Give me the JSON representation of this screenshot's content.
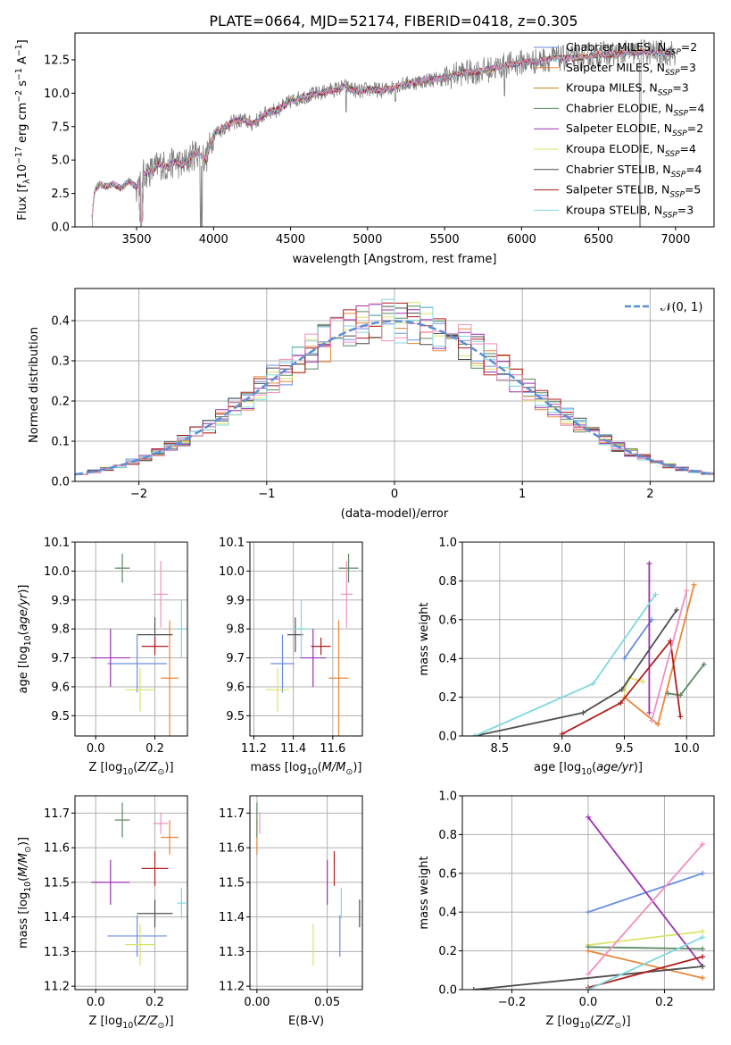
{
  "colors": {
    "chabrier_miles": "#6a8ee0",
    "salpeter_miles": "#e8873a",
    "kroupa_miles": "#b8860b",
    "chabrier_elodie": "#5a8a63",
    "salpeter_elodie": "#9b30b0",
    "kroupa_elodie": "#d9e36a",
    "chabrier_stelib": "#4f4f4f",
    "salpeter_stelib": "#b01e1e",
    "kroupa_stelib": "#80d8e0",
    "pink": "#f090c0",
    "normal_curve": "#5b8fd6",
    "data_spectrum": "#808080",
    "grid": "#b0b0b0"
  },
  "chart_data": [
    {
      "type": "line",
      "title": "PLATE=0664, MJD=52174, FIBERID=0418, z=0.305",
      "xlabel": "wavelength [Angstrom, rest frame]",
      "ylabel": "Flux [fλ10⁻¹⁷ erg cm⁻² s⁻¹ A⁻¹]",
      "xlim": [
        3100,
        7250
      ],
      "ylim": [
        0,
        14.5
      ],
      "xticks": [
        3500,
        4000,
        4500,
        5000,
        5500,
        6000,
        6500,
        7000
      ],
      "yticks": [
        0.0,
        2.5,
        5.0,
        7.5,
        10.0,
        12.5
      ],
      "legend_position": "right",
      "legend": [
        {
          "label": "Chabrier MILES, N",
          "sub": "SSP",
          "suffix": "=2",
          "color": "#6a8ee0"
        },
        {
          "label": "Salpeter MILES, N",
          "sub": "SSP",
          "suffix": "=3",
          "color": "#e8873a"
        },
        {
          "label": "Kroupa MILES, N",
          "sub": "SSP",
          "suffix": "=3",
          "color": "#b8860b"
        },
        {
          "label": "Chabrier ELODIE, N",
          "sub": "SSP",
          "suffix": "=4",
          "color": "#5a8a63"
        },
        {
          "label": "Salpeter ELODIE, N",
          "sub": "SSP",
          "suffix": "=2",
          "color": "#9b30b0"
        },
        {
          "label": "Kroupa ELODIE, N",
          "sub": "SSP",
          "suffix": "=4",
          "color": "#d9e36a"
        },
        {
          "label": "Chabrier STELIB, N",
          "sub": "SSP",
          "suffix": "=4",
          "color": "#4f4f4f"
        },
        {
          "label": "Salpeter STELIB, N",
          "sub": "SSP",
          "suffix": "=5",
          "color": "#b01e1e"
        },
        {
          "label": "Kroupa STELIB, N",
          "sub": "SSP",
          "suffix": "=3",
          "color": "#80d8e0"
        }
      ],
      "continuum": {
        "x": [
          3200,
          3230,
          3260,
          3300,
          3350,
          3400,
          3450,
          3500,
          3550,
          3600,
          3650,
          3700,
          3750,
          3800,
          3850,
          3900,
          3950,
          4000,
          4050,
          4100,
          4150,
          4200,
          4250,
          4300,
          4350,
          4400,
          4450,
          4500,
          4550,
          4600,
          4650,
          4700,
          4750,
          4800,
          4850,
          4900,
          4950,
          5000,
          5100,
          5200,
          5300,
          5400,
          5500,
          5600,
          5700,
          5800,
          5900,
          6000,
          6100,
          6200,
          6300,
          6400,
          6500,
          6600,
          6700,
          6800,
          6900,
          7000
        ],
        "y": [
          0.0,
          2.8,
          3.2,
          3.0,
          3.2,
          2.9,
          3.4,
          3.0,
          4.0,
          4.2,
          4.7,
          4.5,
          4.9,
          4.6,
          5.2,
          5.6,
          5.0,
          7.0,
          7.3,
          7.7,
          7.9,
          8.0,
          7.7,
          8.1,
          8.6,
          8.7,
          9.0,
          9.4,
          9.6,
          9.8,
          9.9,
          10.0,
          10.2,
          10.3,
          10.5,
          10.3,
          10.1,
          10.3,
          10.2,
          10.6,
          10.8,
          11.0,
          11.1,
          11.5,
          11.6,
          11.8,
          12.1,
          12.3,
          12.4,
          12.6,
          12.6,
          12.7,
          12.9,
          12.9,
          13.0,
          13.1,
          13.0,
          13.0
        ]
      },
      "dips": [
        {
          "x": 3530,
          "y": 0.0
        },
        {
          "x": 3915,
          "y": 0.0
        },
        {
          "x": 3925,
          "y": 0.0
        },
        {
          "x": 4860,
          "y": 8.6
        },
        {
          "x": 5180,
          "y": 9.4
        },
        {
          "x": 5890,
          "y": 9.8
        },
        {
          "x": 6770,
          "y": 0.0
        }
      ]
    },
    {
      "type": "step",
      "xlabel": "(data-model)/error",
      "ylabel": "Normed distribution",
      "xlim": [
        -2.5,
        2.5
      ],
      "ylim": [
        0,
        0.48
      ],
      "xticks": [
        -2,
        -1,
        0,
        1,
        2
      ],
      "yticks": [
        0.0,
        0.1,
        0.2,
        0.3,
        0.4
      ],
      "legend_position": "top-right",
      "legend_label": "𝒩(0, 1)",
      "bin_width": 0.1,
      "bin_start": -2.5
    },
    {
      "type": "errorbar",
      "xlabel": "Z [log₁₀(Z/Z⊙)]",
      "ylabel": "age  [log₁₀(age/yr)]",
      "xlim": [
        -0.07,
        0.31
      ],
      "ylim": [
        9.43,
        10.1
      ],
      "xticks": [
        0.0,
        0.2
      ],
      "yticks": [
        9.5,
        9.6,
        9.7,
        9.8,
        9.9,
        10.0,
        10.1
      ]
    },
    {
      "type": "errorbar",
      "xlabel": "mass [log₁₀(M/M⊙)]",
      "xlim": [
        11.18,
        11.75
      ],
      "ylim": [
        9.43,
        10.1
      ],
      "xticks": [
        11.2,
        11.4,
        11.6
      ],
      "yticks": [
        9.5,
        9.6,
        9.7,
        9.8,
        9.9,
        10.0,
        10.1
      ]
    },
    {
      "type": "line",
      "xlabel": "age  [log₁₀(age/yr)]",
      "ylabel": "mass weight",
      "xlim": [
        8.2,
        10.22
      ],
      "ylim": [
        0,
        1.0
      ],
      "xticks": [
        8.5,
        9.0,
        9.5,
        10.0
      ],
      "yticks": [
        0.0,
        0.2,
        0.4,
        0.6,
        0.8,
        1.0
      ]
    },
    {
      "type": "errorbar",
      "xlabel": "Z [log₁₀(Z/Z⊙)]",
      "ylabel": "mass [log₁₀(M/M⊙)]",
      "xlim": [
        -0.07,
        0.31
      ],
      "ylim": [
        11.19,
        11.75
      ],
      "xticks": [
        0.0,
        0.2
      ],
      "yticks": [
        11.2,
        11.3,
        11.4,
        11.5,
        11.6,
        11.7
      ]
    },
    {
      "type": "errorbar",
      "xlabel": "E(B-V)",
      "xlim": [
        -0.005,
        0.075
      ],
      "ylim": [
        11.19,
        11.75
      ],
      "xticks": [
        0.0,
        0.05
      ],
      "xtick_labels": [
        "0.00",
        "0.05"
      ],
      "yticks": [
        11.2,
        11.3,
        11.4,
        11.5,
        11.6,
        11.7
      ]
    },
    {
      "type": "line",
      "xlabel": "Z [log₁₀(Z/Z⊙)]",
      "ylabel": "mass weight",
      "xlim": [
        -0.33,
        0.33
      ],
      "ylim": [
        0,
        1.0
      ],
      "xticks": [
        -0.2,
        0.0,
        0.2
      ],
      "yticks": [
        0.0,
        0.2,
        0.4,
        0.6,
        0.8,
        1.0
      ]
    }
  ],
  "fits": [
    {
      "key": "chabrier_miles",
      "color": "#6a8ee0",
      "Z": [
        0.14,
        0.19
      ],
      "Zerr": [
        0.2,
        0.2
      ],
      "age": [
        9.68,
        9.68
      ],
      "ageerr": [
        0.2,
        0.2
      ],
      "mass": [
        11.345,
        11.345
      ],
      "masserr": [
        0.12,
        0.12
      ],
      "ebv": 0.059,
      "w_age": [
        9.5,
        9.72
      ],
      "w": [
        0.4,
        0.6
      ],
      "w_Z": [
        0.0,
        0.3
      ]
    },
    {
      "key": "salpeter_miles",
      "color": "#e8873a",
      "Z": [
        0.25,
        0.25
      ],
      "Zerr": [
        0.06,
        0.06
      ],
      "age": [
        9.63,
        9.63
      ],
      "ageerr": [
        0.4,
        0.4
      ],
      "mass": [
        11.63,
        11.63
      ],
      "masserr": [
        0.1,
        0.1
      ],
      "ebv": 0.0,
      "w_age": [
        9.5,
        9.77,
        10.06
      ],
      "w": [
        0.2,
        0.06,
        0.78
      ],
      "w_Z": [
        0.0,
        0.3
      ]
    },
    {
      "key": "kroupa_elodie",
      "color": "#d9e36a",
      "Z": [
        0.15,
        0.15
      ],
      "Zerr": [
        0.1,
        0.1
      ],
      "age": [
        9.59,
        9.59
      ],
      "ageerr": [
        0.15,
        0.15
      ],
      "mass": [
        11.32,
        11.32
      ],
      "masserr": [
        0.12,
        0.12
      ],
      "ebv": 0.04,
      "w_age": [
        9.5,
        9.54,
        9.65
      ],
      "w": [
        0.23,
        0.3,
        0.28
      ],
      "w_Z": [
        0.0,
        0.3
      ]
    },
    {
      "key": "chabrier_elodie",
      "color": "#5a8a63",
      "Z": [
        0.09,
        0.09
      ],
      "Zerr": [
        0.05,
        0.05
      ],
      "age": [
        10.01,
        10.01
      ],
      "ageerr": [
        0.1,
        0.1
      ],
      "mass": [
        11.68,
        11.68
      ],
      "masserr": [
        0.1,
        0.1
      ],
      "ebv": 0.0,
      "w_age": [
        9.85,
        9.95,
        10.14
      ],
      "w": [
        0.22,
        0.21,
        0.37
      ],
      "w_Z": [
        0.0,
        0.3
      ]
    },
    {
      "key": "salpeter_elodie",
      "color": "#9b30b0",
      "Z": [
        0.05,
        0.05
      ],
      "Zerr": [
        0.13,
        0.13
      ],
      "age": [
        9.7,
        9.7
      ],
      "ageerr": [
        0.2,
        0.2
      ],
      "mass": [
        11.5,
        11.5
      ],
      "masserr": [
        0.13,
        0.13
      ],
      "ebv": 0.05,
      "w_age": [
        9.7,
        9.7
      ],
      "w": [
        0.89,
        0.12
      ],
      "w_Z": [
        0.0,
        0.3
      ]
    },
    {
      "key": "chabrier_stelib",
      "color": "#4f4f4f",
      "Z": [
        0.2,
        0.2
      ],
      "Zerr": [
        0.12,
        0.12
      ],
      "age": [
        9.78,
        9.78
      ],
      "ageerr": [
        0.12,
        0.12
      ],
      "mass": [
        11.41,
        11.41
      ],
      "masserr": [
        0.08,
        0.08
      ],
      "ebv": 0.073,
      "w_age": [
        8.3,
        9.17,
        9.48,
        9.92
      ],
      "w": [
        0.0,
        0.12,
        0.24,
        0.65
      ],
      "w_Z": [
        -0.3,
        0.3
      ]
    },
    {
      "key": "salpeter_stelib",
      "color": "#b01e1e",
      "Z": [
        0.2,
        0.2
      ],
      "Zerr": [
        0.09,
        0.09
      ],
      "age": [
        9.74,
        9.74
      ],
      "ageerr": [
        0.06,
        0.06
      ],
      "mass": [
        11.54,
        11.54
      ],
      "masserr": [
        0.1,
        0.1
      ],
      "ebv": 0.055,
      "w_age": [
        9.0,
        9.47,
        9.87,
        9.95
      ],
      "w": [
        0.01,
        0.17,
        0.49,
        0.1
      ],
      "w_Z": [
        0.0,
        0.3
      ]
    },
    {
      "key": "kroupa_stelib",
      "color": "#80d8e0",
      "Z": [
        0.29,
        0.29
      ],
      "Zerr": [
        0.03,
        0.03
      ],
      "age": [
        9.8,
        9.8
      ],
      "ageerr": [
        0.2,
        0.2
      ],
      "mass": [
        11.44,
        11.44
      ],
      "masserr": [
        0.09,
        0.09
      ],
      "ebv": 0.06,
      "w_age": [
        8.3,
        9.25,
        9.75
      ],
      "w": [
        0.0,
        0.27,
        0.73
      ],
      "w_Z": [
        0.0,
        0.3
      ]
    },
    {
      "key": "pink",
      "color": "#f090c0",
      "Z": [
        0.22,
        0.22
      ],
      "Zerr": [
        0.05,
        0.05
      ],
      "age": [
        9.92,
        9.92
      ],
      "ageerr": [
        0.23,
        0.23
      ],
      "mass": [
        11.67,
        11.67
      ],
      "masserr": [
        0.06,
        0.06
      ],
      "ebv": 0.002,
      "w_age": [
        9.72,
        10.0
      ],
      "w": [
        0.08,
        0.75
      ],
      "w_Z": [
        0.0,
        0.3
      ]
    }
  ]
}
